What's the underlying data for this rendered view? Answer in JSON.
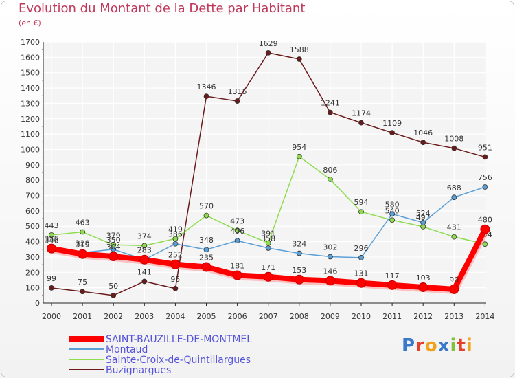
{
  "chart_data": {
    "type": "line",
    "title": "Evolution du Montant de la Dette par Habitant",
    "subtitle": "(en €)",
    "x": [
      "2000",
      "2001",
      "2002",
      "2003",
      "2004",
      "2005",
      "2006",
      "2007",
      "2008",
      "2009",
      "2010",
      "2011",
      "2012",
      "2013",
      "2014"
    ],
    "ylim": [
      0,
      1700
    ],
    "yticks": [
      0,
      100,
      200,
      300,
      400,
      500,
      600,
      700,
      800,
      900,
      1000,
      1100,
      1200,
      1300,
      1400,
      1500,
      1600,
      1700
    ],
    "grid": true,
    "legend_position": "bottom-left",
    "series": [
      {
        "name": "Buzignargues",
        "color": "#6b1a1a",
        "values": [
          99,
          75,
          50,
          141,
          95,
          1346,
          1315,
          1629,
          1588,
          1241,
          1174,
          1109,
          1046,
          1008,
          951
        ]
      },
      {
        "name": "Sainte-Croix-de-Quintillargues",
        "color": "#8fdc4f",
        "values": [
          443,
          463,
          379,
          374,
          419,
          570,
          473,
          391,
          954,
          806,
          594,
          540,
          497,
          431,
          384
        ]
      },
      {
        "name": "Montaud",
        "color": "#5a9fd6",
        "values": [
          346,
          328,
          350,
          283,
          386,
          348,
          406,
          358,
          324,
          302,
          296,
          580,
          524,
          688,
          756
        ]
      },
      {
        "name": "SAINT-BAUZILLE-DE-MONTMEL",
        "color": "#ff0000",
        "values": [
          355,
          319,
          304,
          283,
          252,
          235,
          181,
          171,
          153,
          146,
          131,
          117,
          103,
          90,
          480
        ]
      }
    ]
  },
  "logo": {
    "text": "Proxiti",
    "letters": [
      "P",
      "r",
      "o",
      "x",
      "i",
      "t",
      "i"
    ],
    "colors": [
      "#3a78c9",
      "#e4402a",
      "#f0a21a",
      "#3a78c9",
      "#7cc23a",
      "#e4402a",
      "#f0a21a"
    ]
  }
}
